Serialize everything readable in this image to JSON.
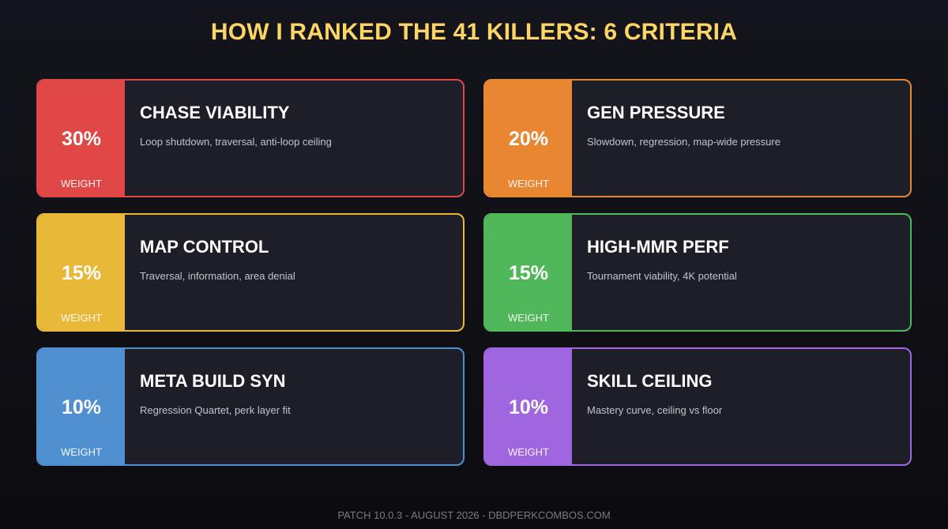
{
  "title": "HOW I RANKED THE 41 KILLERS: 6 CRITERIA",
  "weight_label": "WEIGHT",
  "criteria": [
    {
      "percent": "30%",
      "name": "CHASE VIABILITY",
      "description": "Loop shutdown, traversal, anti-loop ceiling",
      "color": "#e04848"
    },
    {
      "percent": "20%",
      "name": "GEN PRESSURE",
      "description": "Slowdown, regression, map-wide pressure",
      "color": "#e88632"
    },
    {
      "percent": "15%",
      "name": "MAP CONTROL",
      "description": "Traversal, information, area denial",
      "color": "#e8b838"
    },
    {
      "percent": "15%",
      "name": "HIGH-MMR PERF",
      "description": "Tournament viability, 4K potential",
      "color": "#50b85a"
    },
    {
      "percent": "10%",
      "name": "META BUILD SYN",
      "description": "Regression Quartet, perk layer fit",
      "color": "#5090d0"
    },
    {
      "percent": "10%",
      "name": "SKILL CEILING",
      "description": "Mastery curve, ceiling vs floor",
      "color": "#a066e0"
    }
  ],
  "footer": "PATCH 10.0.3 - AUGUST 2026 - DBDPERKCOMBOS.COM"
}
